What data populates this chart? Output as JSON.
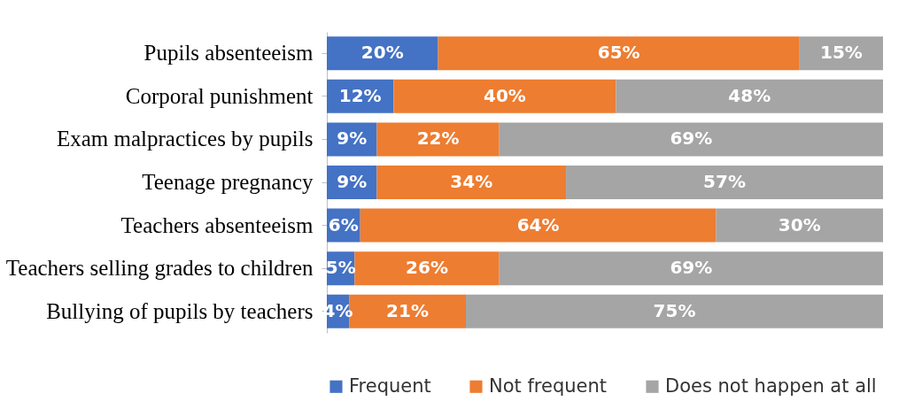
{
  "chart_data": {
    "type": "bar",
    "orientation": "horizontal",
    "stacked": true,
    "legend": "bottom",
    "categories": [
      "Pupils absenteeism",
      "Corporal punishment",
      "Exam malpractices by pupils",
      "Teenage pregnancy",
      "Teachers absenteeism",
      "Teachers selling grades to children",
      "Bullying of pupils by teachers"
    ],
    "series": [
      {
        "name": "Frequent",
        "color": "#4472c4",
        "values": [
          20,
          12,
          9,
          9,
          6,
          5,
          4
        ],
        "value_labels": [
          "20%",
          "12%",
          "9%",
          "9%",
          "6%",
          "5%",
          "4%"
        ]
      },
      {
        "name": "Not frequent",
        "color": "#ed7d31",
        "values": [
          65,
          40,
          22,
          34,
          64,
          26,
          21
        ],
        "value_labels": [
          "65%",
          "40%",
          "22%",
          "34%",
          "64%",
          "26%",
          "21%"
        ]
      },
      {
        "name": "Does not happen at all",
        "color": "#a5a5a5",
        "values": [
          15,
          48,
          69,
          57,
          30,
          69,
          75
        ],
        "value_labels": [
          "15%",
          "48%",
          "69%",
          "57%",
          "30%",
          "69%",
          "75%"
        ]
      }
    ]
  }
}
